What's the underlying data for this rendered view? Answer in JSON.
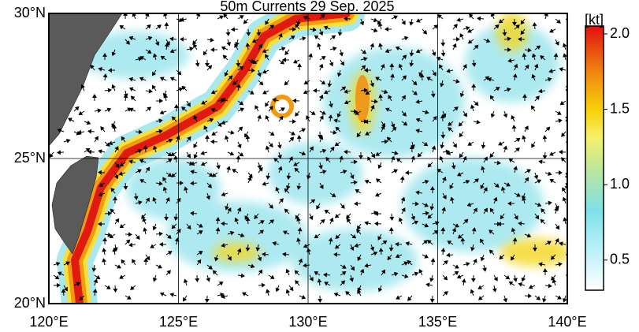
{
  "chart_data": {
    "type": "map",
    "title": "50m Currents  29 Sep. 2025",
    "xlim": [
      120,
      140
    ],
    "xticks": [
      {
        "value": 120,
        "label": "120°E"
      },
      {
        "value": 125,
        "label": "125°E"
      },
      {
        "value": 130,
        "label": "130°E"
      },
      {
        "value": 135,
        "label": "135°E"
      },
      {
        "value": 140,
        "label": "140°E"
      }
    ],
    "ylim": [
      20,
      30
    ],
    "yticks": [
      {
        "value": 20,
        "label": "20°N"
      },
      {
        "value": 25,
        "label": "25°N"
      },
      {
        "value": 30,
        "label": "30°N"
      }
    ],
    "grid": true,
    "colorbar": {
      "label": "[kt]",
      "clim": [
        0.3,
        2.0
      ],
      "ticks": [
        0.5,
        {
          "value": 1.0,
          "label": "1.0"
        },
        1.5,
        {
          "value": 2.0,
          "label": "2.0"
        }
      ]
    }
  }
}
